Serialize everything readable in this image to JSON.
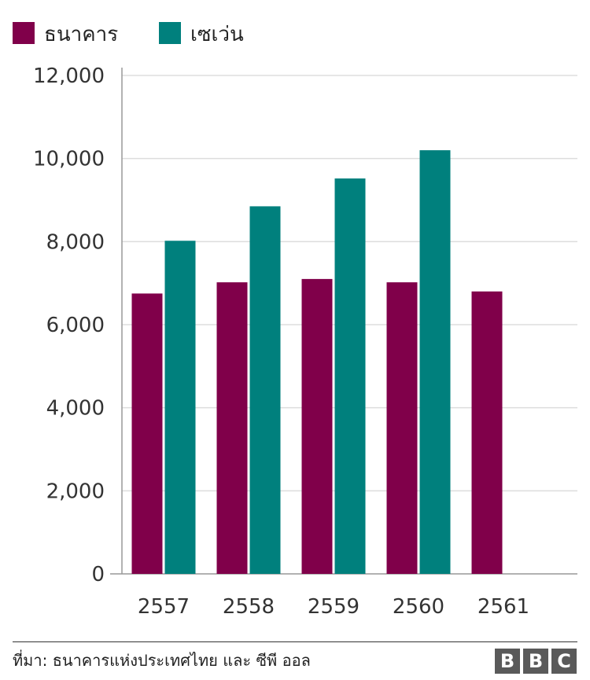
{
  "chart_data": {
    "type": "bar",
    "categories": [
      "2557",
      "2558",
      "2559",
      "2560",
      "2561"
    ],
    "series": [
      {
        "name": "ธนาคาร",
        "color": "#80004a",
        "values": [
          6750,
          7020,
          7100,
          7020,
          6800
        ]
      },
      {
        "name": "เซเว่น",
        "color": "#00807d",
        "values": [
          8020,
          8850,
          9520,
          10200,
          null
        ]
      }
    ],
    "ylim": [
      0,
      12000
    ],
    "yticks": [
      0,
      2000,
      4000,
      6000,
      8000,
      10000,
      12000
    ],
    "ytick_labels": [
      "0",
      "2,000",
      "4,000",
      "6,000",
      "8,000",
      "10,000",
      "12,000"
    ],
    "legend_position": "top-left",
    "grid": true
  },
  "footer": {
    "source": "ที่มา: ธนาคารแห่งประเทศไทย และ ซีพี ออล",
    "logo": [
      "B",
      "B",
      "C"
    ]
  },
  "colors": {
    "axis": "#999999",
    "grid": "#dddddd"
  }
}
